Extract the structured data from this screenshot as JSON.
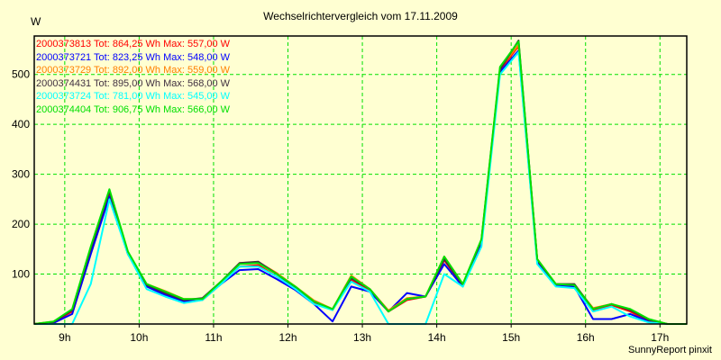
{
  "chart_data": {
    "type": "line",
    "title": "Wechselrichtervergleich vom 17.11.2009",
    "ylabel": "W",
    "xlabel": "",
    "footer": "SunnyReport pinxit",
    "xlim": [
      8.59,
      17.36
    ],
    "ylim": [
      0,
      577
    ],
    "grid": true,
    "legend_position": "top-left",
    "x_ticks": [
      9,
      10,
      11,
      12,
      13,
      14,
      15,
      16,
      17
    ],
    "x_tick_labels": [
      "9h",
      "10h",
      "11h",
      "12h",
      "13h",
      "14h",
      "15h",
      "16h",
      "17h"
    ],
    "y_ticks": [
      100,
      200,
      300,
      400,
      500
    ],
    "y_tick_labels": [
      "100",
      "200",
      "300",
      "400",
      "500"
    ],
    "x": [
      8.59,
      8.85,
      9.1,
      9.35,
      9.6,
      9.85,
      10.1,
      10.35,
      10.6,
      10.85,
      11.1,
      11.35,
      11.6,
      11.85,
      12.1,
      12.35,
      12.6,
      12.85,
      13.1,
      13.35,
      13.6,
      13.85,
      14.1,
      14.35,
      14.6,
      14.85,
      15.1,
      15.35,
      15.6,
      15.85,
      16.1,
      16.35,
      16.6,
      16.85,
      17.1,
      17.36
    ],
    "series": [
      {
        "name": "2000373813",
        "legend": "2000373813 Tot: 864,25 Wh Max: 557,00 W",
        "color": "#ff0000",
        "values": [
          0,
          4,
          25,
          145,
          260,
          140,
          76,
          60,
          47,
          48,
          80,
          115,
          118,
          95,
          70,
          42,
          28,
          88,
          68,
          25,
          48,
          55,
          128,
          76,
          165,
          508,
          557,
          126,
          78,
          76,
          28,
          38,
          25,
          6,
          0,
          0
        ]
      },
      {
        "name": "2000373721",
        "legend": "2000373721 Tot: 823,25 Wh Max: 548,00 W",
        "color": "#0000ff",
        "values": [
          0,
          2,
          20,
          140,
          255,
          140,
          75,
          58,
          45,
          50,
          80,
          108,
          110,
          90,
          68,
          40,
          5,
          75,
          65,
          25,
          62,
          55,
          120,
          75,
          160,
          505,
          548,
          125,
          78,
          75,
          10,
          10,
          20,
          5,
          0,
          0
        ]
      },
      {
        "name": "2000373729",
        "legend": "2000373729 Tot: 892,00 Wh Max: 559,00 W",
        "color": "#ff8000",
        "values": [
          0,
          5,
          28,
          152,
          268,
          143,
          80,
          66,
          50,
          50,
          83,
          122,
          124,
          102,
          75,
          47,
          30,
          97,
          70,
          27,
          52,
          55,
          135,
          80,
          168,
          512,
          559,
          130,
          80,
          78,
          32,
          40,
          28,
          8,
          0,
          0
        ]
      },
      {
        "name": "2000374431",
        "legend": "2000374431 Tot: 895,00 Wh Max: 568,00 W",
        "color": "#403040",
        "values": [
          0,
          4,
          28,
          150,
          265,
          142,
          78,
          62,
          48,
          52,
          85,
          122,
          125,
          100,
          72,
          45,
          28,
          92,
          70,
          25,
          50,
          55,
          130,
          78,
          168,
          510,
          568,
          128,
          80,
          80,
          30,
          40,
          28,
          8,
          0,
          0
        ]
      },
      {
        "name": "2000373724",
        "legend": "2000373724 Tot: 781,00 Wh Max: 545,00 W",
        "color": "#00ffff",
        "values": [
          0,
          0,
          0,
          80,
          250,
          140,
          70,
          55,
          42,
          48,
          80,
          115,
          115,
          95,
          70,
          40,
          28,
          85,
          65,
          0,
          0,
          0,
          100,
          75,
          155,
          500,
          545,
          120,
          75,
          72,
          25,
          35,
          15,
          3,
          0,
          0
        ]
      },
      {
        "name": "2000374404",
        "legend": "2000374404 Tot: 906,75 Wh Max: 566,00 W",
        "color": "#00e000",
        "values": [
          0,
          5,
          30,
          155,
          270,
          145,
          80,
          65,
          50,
          50,
          85,
          120,
          122,
          100,
          75,
          45,
          30,
          95,
          70,
          25,
          50,
          55,
          135,
          80,
          170,
          515,
          566,
          130,
          80,
          78,
          30,
          40,
          30,
          10,
          0,
          0
        ]
      }
    ]
  }
}
